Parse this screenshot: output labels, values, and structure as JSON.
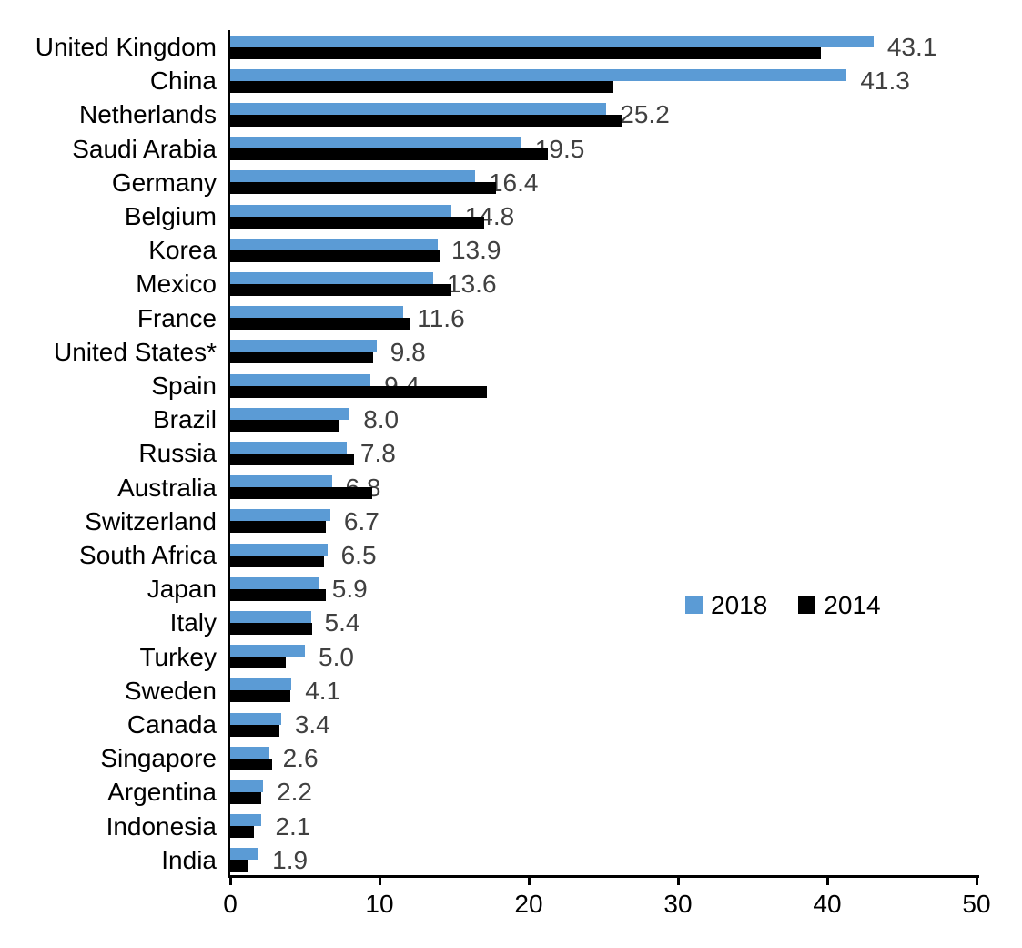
{
  "chart_data": {
    "type": "bar",
    "orientation": "horizontal",
    "title": "",
    "xlabel": "",
    "ylabel": "",
    "xlim": [
      0,
      50
    ],
    "x_ticks": [
      0,
      10,
      20,
      30,
      40,
      50
    ],
    "grid": false,
    "legend_position": "middle-right",
    "categories": [
      "United Kingdom",
      "China",
      "Netherlands",
      "Saudi Arabia",
      "Germany",
      "Belgium",
      "Korea",
      "Mexico",
      "France",
      "United States*",
      "Spain",
      "Brazil",
      "Russia",
      "Australia",
      "Switzerland",
      "South Africa",
      "Japan",
      "Italy",
      "Turkey",
      "Sweden",
      "Canada",
      "Singapore",
      "Argentina",
      "Indonesia",
      "India"
    ],
    "series": [
      {
        "name": "2018",
        "color": "#5B9BD5",
        "values": [
          43.1,
          41.3,
          25.2,
          19.5,
          16.4,
          14.8,
          13.9,
          13.6,
          11.6,
          9.8,
          9.4,
          8.0,
          7.8,
          6.8,
          6.7,
          6.5,
          5.9,
          5.4,
          5.0,
          4.1,
          3.4,
          2.6,
          2.2,
          2.1,
          1.9
        ]
      },
      {
        "name": "2014",
        "color": "#000000",
        "values": [
          39.6,
          25.7,
          26.3,
          21.3,
          17.8,
          17.0,
          14.1,
          14.8,
          12.1,
          9.6,
          17.2,
          7.3,
          8.3,
          9.5,
          6.4,
          6.3,
          6.4,
          5.5,
          3.7,
          4.0,
          3.3,
          2.8,
          2.1,
          1.6,
          1.2
        ]
      }
    ],
    "data_labels": {
      "series": "2018",
      "labels": [
        "43.1",
        "41.3",
        "25.2",
        "19.5",
        "16.4",
        "14.8",
        "13.9",
        "13.6",
        "11.6",
        "9.8",
        "9.4",
        "8.0",
        "7.8",
        "6.8",
        "6.7",
        "6.5",
        "5.9",
        "5.4",
        "5.0",
        "4.1",
        "3.4",
        "2.6",
        "2.2",
        "2.1",
        "1.9"
      ],
      "color": "#404040"
    }
  },
  "legend": {
    "items": [
      {
        "label": "2018",
        "color": "#5B9BD5"
      },
      {
        "label": "2014",
        "color": "#000000"
      }
    ]
  }
}
